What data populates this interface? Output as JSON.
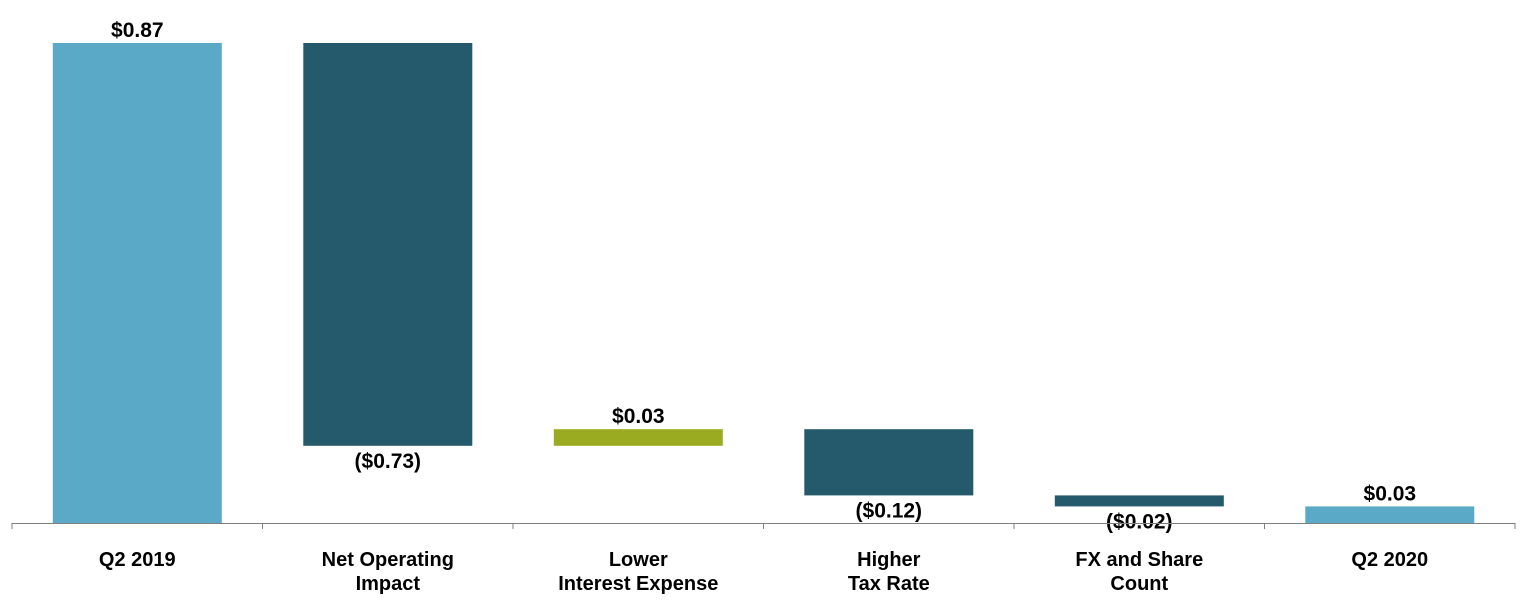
{
  "chart_data": {
    "type": "bar",
    "subtype": "waterfall",
    "categories": [
      [
        "Q2 2019"
      ],
      [
        "Net Operating",
        "Impact"
      ],
      [
        "Lower",
        "Interest Expense"
      ],
      [
        "Higher",
        "Tax Rate"
      ],
      [
        "FX and Share",
        "Count"
      ],
      [
        "Q2 2020"
      ]
    ],
    "values": [
      0.87,
      -0.73,
      0.03,
      -0.12,
      -0.02,
      0.03
    ],
    "bar_kinds": [
      "total",
      "change",
      "change",
      "change",
      "change",
      "total"
    ],
    "value_labels": [
      "$0.87",
      "($0.73)",
      "$0.03",
      "($0.12)",
      "($0.02)",
      "$0.03"
    ],
    "ylim": [
      0,
      0.87
    ],
    "grid": false,
    "legend": "none",
    "colors": {
      "total": "#5aa9c7",
      "decrease": "#245a6b",
      "increase": "#9aab21",
      "axis": "#7f7f7f"
    }
  }
}
